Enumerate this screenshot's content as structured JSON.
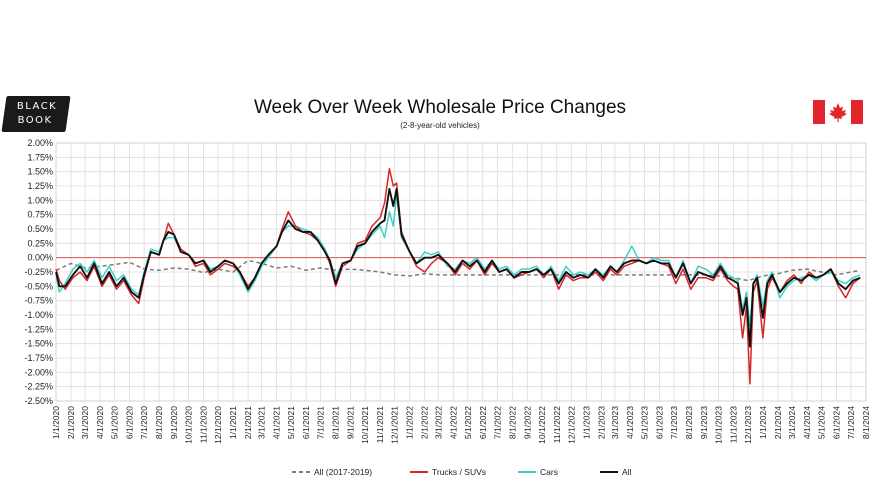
{
  "logo": {
    "line1": "BLACK",
    "line2": "BOOK"
  },
  "header": {
    "title": "Week Over Week Wholesale Price Changes",
    "subtitle": "(2-8-year-old vehicles)"
  },
  "flag": {
    "icon": "canada-flag-icon",
    "red": "#e3262c"
  },
  "chart_data": {
    "type": "line",
    "title": "Week Over Week Wholesale Price Changes",
    "subtitle": "(2-8-year-old vehicles)",
    "ylim": [
      -2.5,
      2.0
    ],
    "xlim": [
      "2020-01-01",
      "2024-08-01"
    ],
    "grid": true,
    "legend_position": "bottom",
    "zero_line_color": "#e05656",
    "y_ticks": [
      "2.00%",
      "1.75%",
      "1.50%",
      "1.25%",
      "1.00%",
      "0.75%",
      "0.50%",
      "0.25%",
      "0.00%",
      "-0.25%",
      "-0.50%",
      "-0.75%",
      "-1.00%",
      "-1.25%",
      "-1.50%",
      "-1.75%",
      "-2.00%",
      "-2.25%",
      "-2.50%"
    ],
    "x_ticks": [
      "1/1/2020",
      "2/1/2020",
      "3/1/2020",
      "4/1/2020",
      "5/1/2020",
      "6/1/2020",
      "7/1/2020",
      "8/1/2020",
      "9/1/2020",
      "10/1/2020",
      "11/1/2020",
      "12/1/2020",
      "1/1/2021",
      "2/1/2021",
      "3/1/2021",
      "4/1/2021",
      "5/1/2021",
      "6/1/2021",
      "7/1/2021",
      "8/1/2021",
      "9/1/2021",
      "10/1/2021",
      "11/1/2021",
      "12/1/2021",
      "1/1/2022",
      "2/1/2022",
      "3/1/2022",
      "4/1/2022",
      "5/1/2022",
      "6/1/2022",
      "7/1/2022",
      "8/1/2022",
      "9/1/2022",
      "10/1/2022",
      "11/1/2022",
      "12/1/2022",
      "1/1/2023",
      "2/1/2023",
      "3/1/2023",
      "4/1/2023",
      "5/1/2023",
      "6/1/2023",
      "7/1/2023",
      "8/1/2023",
      "9/1/2023",
      "10/1/2023",
      "11/1/2023",
      "12/1/2023",
      "1/1/2024",
      "2/1/2024",
      "3/1/2024",
      "4/1/2024",
      "5/1/2024",
      "6/1/2024",
      "7/1/2024",
      "8/1/2024"
    ],
    "series": [
      {
        "name": "All (2017-2019)",
        "color": "#7a7a7a",
        "dash": true,
        "x": [
          "2020-01-01",
          "2020-02-01",
          "2020-03-01",
          "2020-04-01",
          "2020-05-01",
          "2020-06-01",
          "2020-07-01",
          "2020-08-01",
          "2020-09-01",
          "2020-10-01",
          "2020-11-01",
          "2020-12-01",
          "2021-01-01",
          "2021-02-01",
          "2021-03-01",
          "2021-04-01",
          "2021-05-01",
          "2021-06-01",
          "2021-07-01",
          "2021-08-01",
          "2021-09-01",
          "2021-10-01",
          "2021-11-01",
          "2021-12-01",
          "2022-01-01",
          "2022-02-01",
          "2022-03-01",
          "2023-09-01",
          "2023-10-01",
          "2023-11-01",
          "2023-12-01",
          "2024-01-01",
          "2024-02-01",
          "2024-03-01",
          "2024-04-01",
          "2024-05-01",
          "2024-06-01",
          "2024-07-01",
          "2024-07-20"
        ],
        "values": [
          -0.22,
          -0.1,
          -0.18,
          -0.15,
          -0.12,
          -0.08,
          -0.2,
          -0.22,
          -0.18,
          -0.2,
          -0.26,
          -0.2,
          -0.25,
          -0.05,
          -0.1,
          -0.18,
          -0.15,
          -0.22,
          -0.18,
          -0.22,
          -0.2,
          -0.22,
          -0.25,
          -0.3,
          -0.32,
          -0.28,
          -0.3,
          -0.3,
          -0.32,
          -0.35,
          -0.4,
          -0.32,
          -0.28,
          -0.22,
          -0.2,
          -0.25,
          -0.3,
          -0.25,
          -0.22
        ]
      },
      {
        "name": "Trucks / SUVs",
        "color": "#d62728",
        "dash": false,
        "x": [
          "2020-01-01",
          "2020-01-08",
          "2020-01-20",
          "2020-02-05",
          "2020-02-20",
          "2020-03-05",
          "2020-03-20",
          "2020-04-05",
          "2020-04-20",
          "2020-05-05",
          "2020-05-20",
          "2020-06-05",
          "2020-06-20",
          "2020-07-01",
          "2020-07-15",
          "2020-08-01",
          "2020-08-10",
          "2020-08-20",
          "2020-09-01",
          "2020-09-15",
          "2020-10-01",
          "2020-10-15",
          "2020-11-01",
          "2020-11-15",
          "2020-12-01",
          "2020-12-15",
          "2021-01-01",
          "2021-01-15",
          "2021-02-01",
          "2021-02-15",
          "2021-03-01",
          "2021-03-15",
          "2021-04-01",
          "2021-04-12",
          "2021-04-25",
          "2021-05-10",
          "2021-05-25",
          "2021-06-10",
          "2021-06-25",
          "2021-07-10",
          "2021-07-20",
          "2021-08-01",
          "2021-08-15",
          "2021-09-01",
          "2021-09-15",
          "2021-10-01",
          "2021-10-15",
          "2021-11-01",
          "2021-11-10",
          "2021-11-20",
          "2021-11-28",
          "2021-12-05",
          "2021-12-15",
          "2022-01-01",
          "2022-01-15",
          "2022-02-01",
          "2022-02-15",
          "2022-03-01",
          "2022-03-20",
          "2022-04-05",
          "2022-04-20",
          "2022-05-05",
          "2022-05-20",
          "2022-06-05",
          "2022-06-20",
          "2022-07-05",
          "2022-07-20",
          "2022-08-05",
          "2022-08-20",
          "2022-09-05",
          "2022-09-20",
          "2022-10-05",
          "2022-10-20",
          "2022-11-05",
          "2022-11-20",
          "2022-12-05",
          "2022-12-20",
          "2023-01-05",
          "2023-01-20",
          "2023-02-05",
          "2023-02-20",
          "2023-03-05",
          "2023-03-20",
          "2023-04-05",
          "2023-04-20",
          "2023-05-05",
          "2023-05-20",
          "2023-06-05",
          "2023-06-20",
          "2023-07-05",
          "2023-07-20",
          "2023-08-05",
          "2023-08-20",
          "2023-09-05",
          "2023-09-20",
          "2023-10-05",
          "2023-10-20",
          "2023-11-01",
          "2023-11-10",
          "2023-11-20",
          "2023-11-28",
          "2023-12-05",
          "2023-12-12",
          "2023-12-20",
          "2024-01-01",
          "2024-01-10",
          "2024-01-20",
          "2024-02-05",
          "2024-02-20",
          "2024-03-05",
          "2024-03-20",
          "2024-04-05",
          "2024-04-20",
          "2024-05-05",
          "2024-05-20",
          "2024-06-05",
          "2024-06-20",
          "2024-07-05",
          "2024-07-20"
        ],
        "values": [
          -0.2,
          -0.4,
          -0.55,
          -0.35,
          -0.25,
          -0.4,
          -0.15,
          -0.5,
          -0.3,
          -0.55,
          -0.4,
          -0.65,
          -0.8,
          -0.35,
          0.1,
          0.05,
          0.3,
          0.6,
          0.4,
          0.15,
          0.05,
          -0.15,
          -0.1,
          -0.3,
          -0.2,
          -0.1,
          -0.15,
          -0.25,
          -0.5,
          -0.35,
          -0.1,
          0.05,
          0.2,
          0.5,
          0.8,
          0.55,
          0.45,
          0.4,
          0.3,
          0.1,
          -0.1,
          -0.5,
          -0.15,
          -0.05,
          0.25,
          0.3,
          0.55,
          0.7,
          0.95,
          1.55,
          1.25,
          1.3,
          0.45,
          0.1,
          -0.15,
          -0.25,
          -0.1,
          0.0,
          -0.1,
          -0.3,
          -0.1,
          -0.2,
          -0.05,
          -0.3,
          -0.1,
          -0.25,
          -0.2,
          -0.35,
          -0.3,
          -0.25,
          -0.2,
          -0.35,
          -0.2,
          -0.55,
          -0.3,
          -0.4,
          -0.35,
          -0.35,
          -0.25,
          -0.4,
          -0.2,
          -0.3,
          -0.15,
          -0.1,
          -0.05,
          -0.1,
          -0.05,
          -0.1,
          -0.15,
          -0.45,
          -0.2,
          -0.55,
          -0.35,
          -0.35,
          -0.4,
          -0.2,
          -0.4,
          -0.5,
          -0.55,
          -1.4,
          -0.85,
          -2.2,
          -0.6,
          -0.4,
          -1.4,
          -0.55,
          -0.35,
          -0.6,
          -0.4,
          -0.3,
          -0.45,
          -0.25,
          -0.35,
          -0.3,
          -0.2,
          -0.5,
          -0.7,
          -0.45,
          -0.35
        ]
      },
      {
        "name": "Cars",
        "color": "#3fd1c8",
        "dash": false,
        "x": [
          "2020-01-01",
          "2020-01-08",
          "2020-01-20",
          "2020-02-05",
          "2020-02-20",
          "2020-03-05",
          "2020-03-20",
          "2020-04-05",
          "2020-04-20",
          "2020-05-05",
          "2020-05-20",
          "2020-06-05",
          "2020-06-20",
          "2020-07-01",
          "2020-07-15",
          "2020-08-01",
          "2020-08-10",
          "2020-08-20",
          "2020-09-01",
          "2020-09-15",
          "2020-10-01",
          "2020-10-15",
          "2020-11-01",
          "2020-11-15",
          "2020-12-01",
          "2020-12-15",
          "2021-01-01",
          "2021-01-15",
          "2021-02-01",
          "2021-02-15",
          "2021-03-01",
          "2021-03-15",
          "2021-04-01",
          "2021-04-12",
          "2021-04-25",
          "2021-05-10",
          "2021-05-25",
          "2021-06-10",
          "2021-06-25",
          "2021-07-10",
          "2021-07-20",
          "2021-08-01",
          "2021-08-15",
          "2021-09-01",
          "2021-09-15",
          "2021-10-01",
          "2021-10-15",
          "2021-11-01",
          "2021-11-10",
          "2021-11-20",
          "2021-11-28",
          "2021-12-05",
          "2021-12-15",
          "2022-01-01",
          "2022-01-15",
          "2022-02-01",
          "2022-02-15",
          "2022-03-01",
          "2022-03-20",
          "2022-04-05",
          "2022-04-20",
          "2022-05-05",
          "2022-05-20",
          "2022-06-05",
          "2022-06-20",
          "2022-07-05",
          "2022-07-20",
          "2022-08-05",
          "2022-08-20",
          "2022-09-05",
          "2022-09-20",
          "2022-10-05",
          "2022-10-20",
          "2022-11-05",
          "2022-11-20",
          "2022-12-05",
          "2022-12-20",
          "2023-01-05",
          "2023-01-20",
          "2023-02-05",
          "2023-02-20",
          "2023-03-05",
          "2023-03-20",
          "2023-04-05",
          "2023-04-20",
          "2023-05-05",
          "2023-05-20",
          "2023-06-05",
          "2023-06-20",
          "2023-07-05",
          "2023-07-20",
          "2023-08-05",
          "2023-08-20",
          "2023-09-05",
          "2023-09-20",
          "2023-10-05",
          "2023-10-20",
          "2023-11-01",
          "2023-11-10",
          "2023-11-20",
          "2023-11-28",
          "2023-12-05",
          "2023-12-12",
          "2023-12-20",
          "2024-01-01",
          "2024-01-10",
          "2024-01-20",
          "2024-02-05",
          "2024-02-20",
          "2024-03-05",
          "2024-03-20",
          "2024-04-05",
          "2024-04-20",
          "2024-05-05",
          "2024-05-20",
          "2024-06-05",
          "2024-06-20",
          "2024-07-05",
          "2024-07-20"
        ],
        "values": [
          -0.3,
          -0.6,
          -0.45,
          -0.2,
          -0.1,
          -0.25,
          -0.05,
          -0.35,
          -0.15,
          -0.4,
          -0.3,
          -0.55,
          -0.65,
          -0.25,
          0.15,
          0.1,
          0.3,
          0.35,
          0.35,
          0.1,
          0.05,
          -0.1,
          -0.05,
          -0.2,
          -0.15,
          -0.05,
          -0.1,
          -0.3,
          -0.6,
          -0.4,
          -0.15,
          0.0,
          0.2,
          0.45,
          0.55,
          0.55,
          0.5,
          0.45,
          0.35,
          0.15,
          -0.05,
          -0.35,
          -0.1,
          -0.05,
          0.15,
          0.25,
          0.4,
          0.55,
          0.35,
          0.8,
          0.55,
          1.1,
          0.35,
          0.1,
          -0.1,
          0.1,
          0.05,
          0.1,
          -0.15,
          -0.2,
          -0.05,
          -0.1,
          0.0,
          -0.2,
          -0.05,
          -0.2,
          -0.15,
          -0.3,
          -0.2,
          -0.2,
          -0.15,
          -0.3,
          -0.15,
          -0.4,
          -0.15,
          -0.3,
          -0.25,
          -0.3,
          -0.2,
          -0.3,
          -0.15,
          -0.25,
          -0.05,
          0.2,
          -0.05,
          -0.1,
          0.0,
          -0.05,
          -0.05,
          -0.35,
          -0.05,
          -0.45,
          -0.15,
          -0.2,
          -0.3,
          -0.1,
          -0.3,
          -0.35,
          -0.4,
          -0.9,
          -0.6,
          -1.2,
          -0.45,
          -0.3,
          -0.85,
          -0.4,
          -0.25,
          -0.7,
          -0.5,
          -0.4,
          -0.35,
          -0.3,
          -0.4,
          -0.3,
          -0.25,
          -0.4,
          -0.45,
          -0.35,
          -0.3
        ]
      },
      {
        "name": "All",
        "color": "#111111",
        "dash": false,
        "x": [
          "2020-01-01",
          "2020-01-08",
          "2020-01-20",
          "2020-02-05",
          "2020-02-20",
          "2020-03-05",
          "2020-03-20",
          "2020-04-05",
          "2020-04-20",
          "2020-05-05",
          "2020-05-20",
          "2020-06-05",
          "2020-06-20",
          "2020-07-01",
          "2020-07-15",
          "2020-08-01",
          "2020-08-10",
          "2020-08-20",
          "2020-09-01",
          "2020-09-15",
          "2020-10-01",
          "2020-10-15",
          "2020-11-01",
          "2020-11-15",
          "2020-12-01",
          "2020-12-15",
          "2021-01-01",
          "2021-01-15",
          "2021-02-01",
          "2021-02-15",
          "2021-03-01",
          "2021-03-15",
          "2021-04-01",
          "2021-04-12",
          "2021-04-25",
          "2021-05-10",
          "2021-05-25",
          "2021-06-10",
          "2021-06-25",
          "2021-07-10",
          "2021-07-20",
          "2021-08-01",
          "2021-08-15",
          "2021-09-01",
          "2021-09-15",
          "2021-10-01",
          "2021-10-15",
          "2021-11-01",
          "2021-11-10",
          "2021-11-20",
          "2021-11-28",
          "2021-12-05",
          "2021-12-15",
          "2022-01-01",
          "2022-01-15",
          "2022-02-01",
          "2022-02-15",
          "2022-03-01",
          "2022-03-20",
          "2022-04-05",
          "2022-04-20",
          "2022-05-05",
          "2022-05-20",
          "2022-06-05",
          "2022-06-20",
          "2022-07-05",
          "2022-07-20",
          "2022-08-05",
          "2022-08-20",
          "2022-09-05",
          "2022-09-20",
          "2022-10-05",
          "2022-10-20",
          "2022-11-05",
          "2022-11-20",
          "2022-12-05",
          "2022-12-20",
          "2023-01-05",
          "2023-01-20",
          "2023-02-05",
          "2023-02-20",
          "2023-03-05",
          "2023-03-20",
          "2023-04-05",
          "2023-04-20",
          "2023-05-05",
          "2023-05-20",
          "2023-06-05",
          "2023-06-20",
          "2023-07-05",
          "2023-07-20",
          "2023-08-05",
          "2023-08-20",
          "2023-09-05",
          "2023-09-20",
          "2023-10-05",
          "2023-10-20",
          "2023-11-01",
          "2023-11-10",
          "2023-11-20",
          "2023-11-28",
          "2023-12-05",
          "2023-12-12",
          "2023-12-20",
          "2024-01-01",
          "2024-01-10",
          "2024-01-20",
          "2024-02-05",
          "2024-02-20",
          "2024-03-05",
          "2024-03-20",
          "2024-04-05",
          "2024-04-20",
          "2024-05-05",
          "2024-05-20",
          "2024-06-05",
          "2024-06-20",
          "2024-07-05",
          "2024-07-20"
        ],
        "values": [
          -0.25,
          -0.5,
          -0.5,
          -0.3,
          -0.15,
          -0.35,
          -0.1,
          -0.45,
          -0.25,
          -0.5,
          -0.35,
          -0.6,
          -0.7,
          -0.3,
          0.1,
          0.05,
          0.3,
          0.45,
          0.4,
          0.1,
          0.05,
          -0.1,
          -0.05,
          -0.25,
          -0.15,
          -0.05,
          -0.1,
          -0.25,
          -0.55,
          -0.35,
          -0.1,
          0.05,
          0.2,
          0.45,
          0.65,
          0.5,
          0.45,
          0.45,
          0.3,
          0.1,
          -0.05,
          -0.45,
          -0.1,
          -0.05,
          0.2,
          0.25,
          0.45,
          0.6,
          0.65,
          1.2,
          0.9,
          1.2,
          0.4,
          0.1,
          -0.1,
          0.0,
          0.0,
          0.05,
          -0.1,
          -0.25,
          -0.05,
          -0.15,
          -0.05,
          -0.25,
          -0.05,
          -0.25,
          -0.2,
          -0.35,
          -0.25,
          -0.25,
          -0.2,
          -0.3,
          -0.2,
          -0.45,
          -0.25,
          -0.35,
          -0.3,
          -0.35,
          -0.2,
          -0.35,
          -0.15,
          -0.25,
          -0.1,
          -0.05,
          -0.05,
          -0.1,
          -0.05,
          -0.1,
          -0.1,
          -0.35,
          -0.1,
          -0.45,
          -0.25,
          -0.3,
          -0.35,
          -0.15,
          -0.35,
          -0.4,
          -0.45,
          -1.0,
          -0.7,
          -1.55,
          -0.45,
          -0.35,
          -1.05,
          -0.45,
          -0.3,
          -0.6,
          -0.45,
          -0.35,
          -0.4,
          -0.3,
          -0.35,
          -0.3,
          -0.2,
          -0.45,
          -0.55,
          -0.4,
          -0.35
        ]
      }
    ]
  }
}
